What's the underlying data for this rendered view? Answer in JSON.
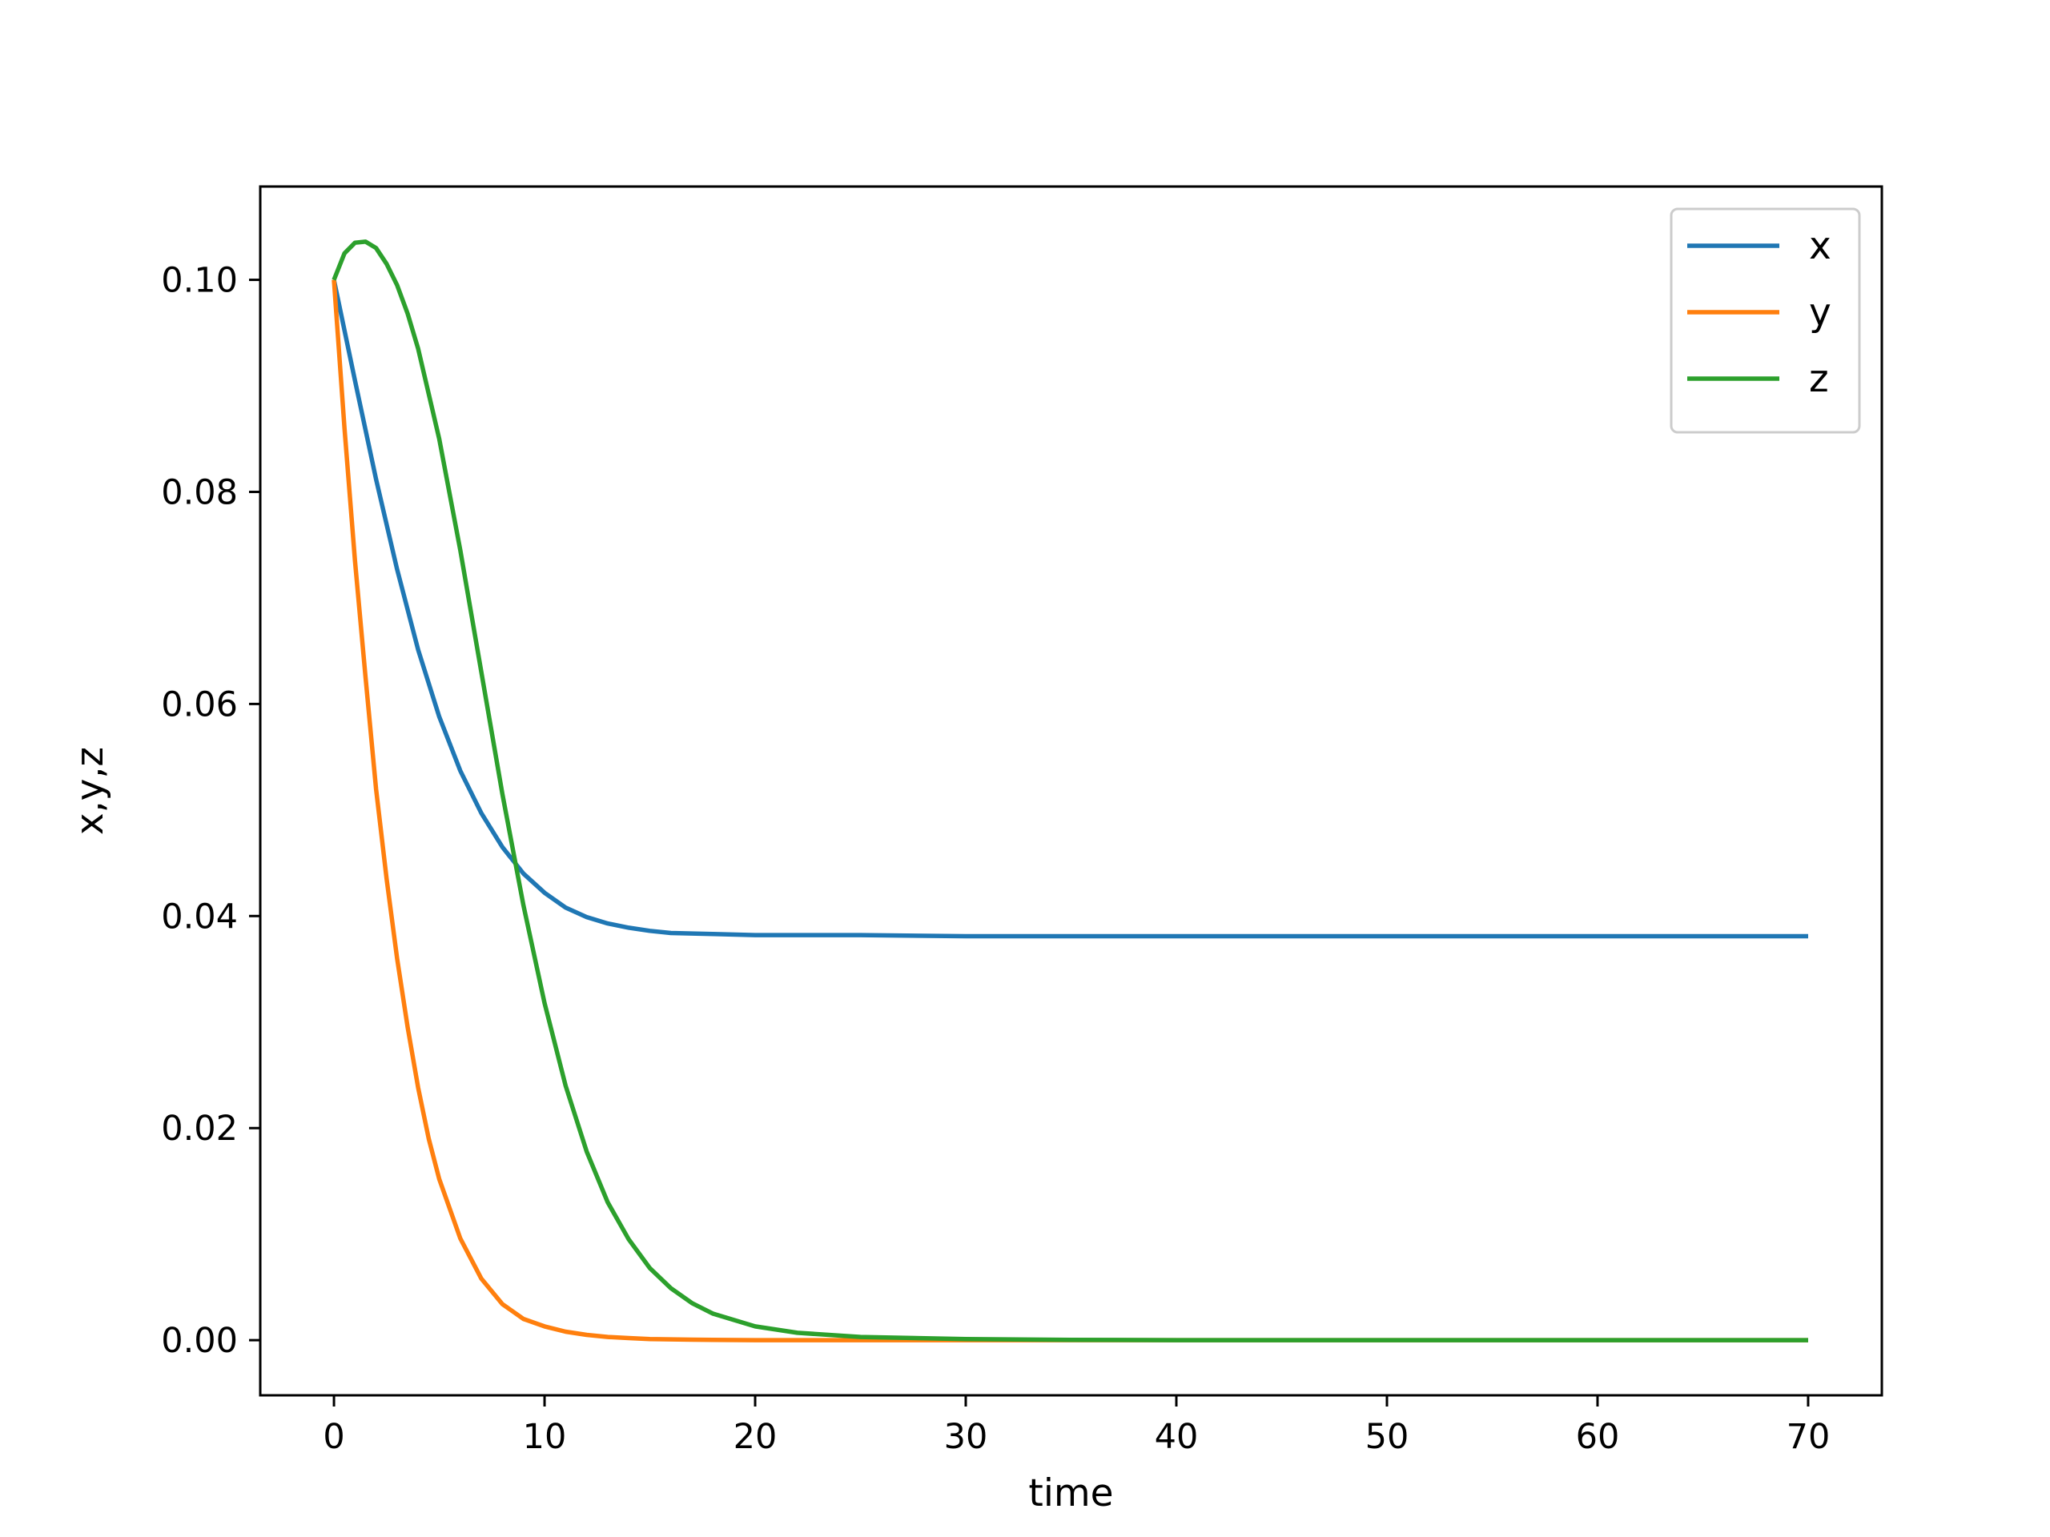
{
  "chart_data": {
    "type": "line",
    "title": "",
    "xlabel": "time",
    "ylabel": "x,y,z",
    "xlim": [
      -3.5,
      73.5
    ],
    "ylim": [
      -0.0052,
      0.1088
    ],
    "xticks": [
      0,
      10,
      20,
      30,
      40,
      50,
      60,
      70
    ],
    "xtick_labels": [
      "0",
      "10",
      "20",
      "30",
      "40",
      "50",
      "60",
      "70"
    ],
    "yticks": [
      0.0,
      0.02,
      0.04,
      0.06,
      0.08,
      0.1
    ],
    "ytick_labels": [
      "0.00",
      "0.02",
      "0.04",
      "0.06",
      "0.08",
      "0.10"
    ],
    "grid": false,
    "legend_position": "top-right",
    "series": [
      {
        "name": "x",
        "color": "#1f77b4",
        "x": [
          0,
          1,
          2,
          3,
          4,
          5,
          6,
          7,
          8,
          9,
          10,
          11,
          12,
          13,
          14,
          15,
          16,
          18,
          20,
          22,
          25,
          30,
          35,
          40,
          50,
          60,
          70
        ],
        "y": [
          0.1,
          0.0905,
          0.0812,
          0.0727,
          0.0651,
          0.0588,
          0.0537,
          0.0497,
          0.0465,
          0.044,
          0.0422,
          0.0408,
          0.0399,
          0.0393,
          0.0389,
          0.0386,
          0.0384,
          0.0383,
          0.0382,
          0.0382,
          0.0382,
          0.0381,
          0.0381,
          0.0381,
          0.0381,
          0.0381,
          0.0381
        ]
      },
      {
        "name": "y",
        "color": "#ff7f0e",
        "x": [
          0,
          0.5,
          1,
          1.5,
          2,
          2.5,
          3,
          3.5,
          4,
          4.5,
          5,
          6,
          7,
          8,
          9,
          10,
          11,
          12,
          13,
          14,
          15,
          17,
          20,
          25,
          30,
          40,
          50,
          60,
          70
        ],
        "y": [
          0.1,
          0.086,
          0.0735,
          0.0625,
          0.052,
          0.0435,
          0.036,
          0.0295,
          0.0238,
          0.019,
          0.0152,
          0.0096,
          0.0058,
          0.0034,
          0.002,
          0.0013,
          0.0008,
          0.0005,
          0.0003,
          0.0002,
          0.0001,
          5e-05,
          0.0,
          0.0,
          0.0,
          0.0,
          0.0,
          0.0,
          0.0
        ]
      },
      {
        "name": "z",
        "color": "#2ca02c",
        "x": [
          0,
          0.5,
          1,
          1.5,
          2,
          2.5,
          3,
          3.5,
          4,
          5,
          6,
          7,
          8,
          9,
          10,
          11,
          12,
          13,
          14,
          15,
          16,
          17,
          18,
          20,
          22,
          25,
          30,
          35,
          40,
          50,
          60,
          70
        ],
        "y": [
          0.1,
          0.1025,
          0.1035,
          0.1036,
          0.103,
          0.1015,
          0.0995,
          0.0968,
          0.0935,
          0.085,
          0.0745,
          0.063,
          0.0515,
          0.041,
          0.0318,
          0.024,
          0.0178,
          0.013,
          0.0095,
          0.0068,
          0.0049,
          0.0035,
          0.0025,
          0.0013,
          0.0007,
          0.0003,
          0.0001,
          3e-05,
          0.0,
          0.0,
          0.0,
          0.0
        ]
      }
    ]
  }
}
